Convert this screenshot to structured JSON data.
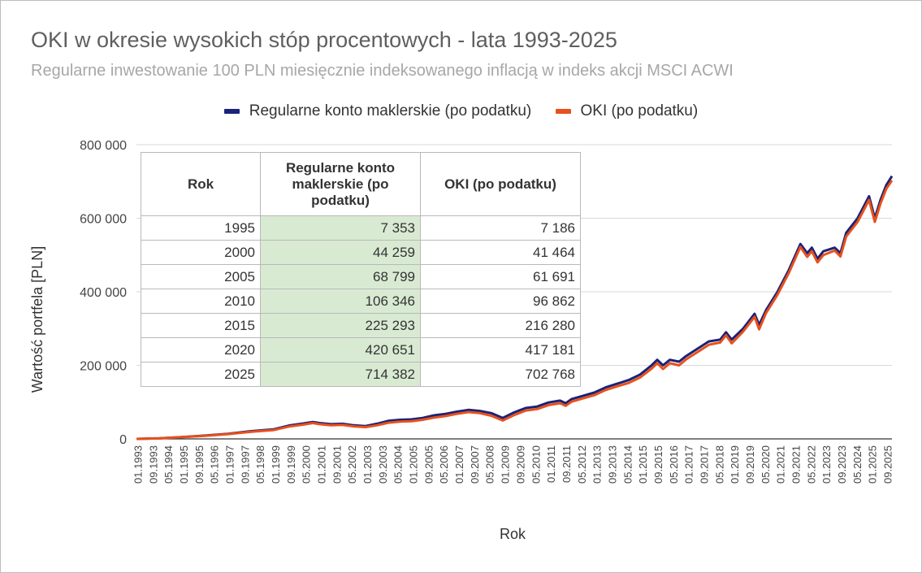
{
  "title": "OKI w okresie wysokich stóp procentowych - lata 1993-2025",
  "subtitle": "Regularne inwestowanie 100 PLN miesięcznie indeksowanego inflacją w indeks akcji MSCI ACWI",
  "colors": {
    "series1": "#1a2377",
    "series2": "#e8501c",
    "grid": "#d9d9d9",
    "table_highlight": "#d9ead3"
  },
  "chart_data": {
    "type": "line",
    "xlabel": "Rok",
    "ylabel": "Wartość portfela [PLN]",
    "ylim": [
      0,
      800000
    ],
    "y_ticks": [
      "0",
      "200 000",
      "400 000",
      "600 000",
      "800 000"
    ],
    "x_tick_labels": [
      "01.1993",
      "09.1993",
      "05.1994",
      "01.1995",
      "09.1995",
      "05.1996",
      "01.1997",
      "09.1997",
      "05.1998",
      "01.1999",
      "09.1999",
      "05.2000",
      "01.2001",
      "09.2001",
      "05.2002",
      "01.2003",
      "09.2003",
      "05.2004",
      "01.2005",
      "09.2005",
      "05.2006",
      "01.2007",
      "09.2007",
      "05.2008",
      "01.2009",
      "09.2009",
      "05.2010",
      "01.2011",
      "09.2011",
      "05.2012",
      "01.2013",
      "09.2013",
      "05.2014",
      "01.2015",
      "09.2015",
      "05.2016",
      "01.2017",
      "09.2017",
      "05.2018",
      "01.2019",
      "09.2019",
      "05.2020",
      "01.2021",
      "09.2021",
      "05.2022",
      "01.2023",
      "09.2023",
      "05.2024",
      "01.2025",
      "09.2025"
    ],
    "legend_position": "top",
    "grid": true,
    "series": [
      {
        "name": "Regularne konto maklerskie (po podatku)",
        "color": "#1a2377",
        "points": [
          [
            1993.0,
            0
          ],
          [
            1994.0,
            1500
          ],
          [
            1995.0,
            5000
          ],
          [
            1996.0,
            9000
          ],
          [
            1997.0,
            14000
          ],
          [
            1998.0,
            21000
          ],
          [
            1999.0,
            26000
          ],
          [
            1999.7,
            37000
          ],
          [
            2000.3,
            42000
          ],
          [
            2000.7,
            46000
          ],
          [
            2001.0,
            43000
          ],
          [
            2001.5,
            40000
          ],
          [
            2002.0,
            41000
          ],
          [
            2002.5,
            37000
          ],
          [
            2003.0,
            35000
          ],
          [
            2003.5,
            41000
          ],
          [
            2004.0,
            49000
          ],
          [
            2004.5,
            52000
          ],
          [
            2005.0,
            53000
          ],
          [
            2005.5,
            57000
          ],
          [
            2006.0,
            64000
          ],
          [
            2006.5,
            68000
          ],
          [
            2007.0,
            74000
          ],
          [
            2007.5,
            79000
          ],
          [
            2008.0,
            76000
          ],
          [
            2008.5,
            70000
          ],
          [
            2009.0,
            57000
          ],
          [
            2009.2,
            63000
          ],
          [
            2009.5,
            72000
          ],
          [
            2010.0,
            84000
          ],
          [
            2010.5,
            88000
          ],
          [
            2011.0,
            99000
          ],
          [
            2011.5,
            104000
          ],
          [
            2011.75,
            97000
          ],
          [
            2012.0,
            108000
          ],
          [
            2012.5,
            117000
          ],
          [
            2013.0,
            126000
          ],
          [
            2013.5,
            140000
          ],
          [
            2014.0,
            150000
          ],
          [
            2014.5,
            160000
          ],
          [
            2015.0,
            175000
          ],
          [
            2015.5,
            200000
          ],
          [
            2015.75,
            215000
          ],
          [
            2016.0,
            200000
          ],
          [
            2016.3,
            215000
          ],
          [
            2016.7,
            210000
          ],
          [
            2017.0,
            225000
          ],
          [
            2017.5,
            245000
          ],
          [
            2018.0,
            265000
          ],
          [
            2018.5,
            270000
          ],
          [
            2018.75,
            290000
          ],
          [
            2019.0,
            270000
          ],
          [
            2019.5,
            300000
          ],
          [
            2020.0,
            340000
          ],
          [
            2020.2,
            310000
          ],
          [
            2020.5,
            350000
          ],
          [
            2021.0,
            400000
          ],
          [
            2021.5,
            460000
          ],
          [
            2022.0,
            530000
          ],
          [
            2022.3,
            505000
          ],
          [
            2022.5,
            520000
          ],
          [
            2022.75,
            490000
          ],
          [
            2023.0,
            510000
          ],
          [
            2023.5,
            520000
          ],
          [
            2023.75,
            505000
          ],
          [
            2024.0,
            560000
          ],
          [
            2024.5,
            600000
          ],
          [
            2024.75,
            630000
          ],
          [
            2025.0,
            660000
          ],
          [
            2025.25,
            600000
          ],
          [
            2025.5,
            650000
          ],
          [
            2025.75,
            690000
          ],
          [
            2026.0,
            714382
          ]
        ]
      },
      {
        "name": "OKI (po podatku)",
        "color": "#e8501c",
        "points": [
          [
            1993.0,
            0
          ],
          [
            1994.0,
            1400
          ],
          [
            1995.0,
            4800
          ],
          [
            1996.0,
            8500
          ],
          [
            1997.0,
            13000
          ],
          [
            1998.0,
            19500
          ],
          [
            1999.0,
            24000
          ],
          [
            1999.7,
            34000
          ],
          [
            2000.3,
            39000
          ],
          [
            2000.7,
            43000
          ],
          [
            2001.0,
            40000
          ],
          [
            2001.5,
            37000
          ],
          [
            2002.0,
            38000
          ],
          [
            2002.5,
            34000
          ],
          [
            2003.0,
            32000
          ],
          [
            2003.5,
            37000
          ],
          [
            2004.0,
            44000
          ],
          [
            2004.5,
            47000
          ],
          [
            2005.0,
            48000
          ],
          [
            2005.5,
            52000
          ],
          [
            2006.0,
            58000
          ],
          [
            2006.5,
            62000
          ],
          [
            2007.0,
            68000
          ],
          [
            2007.5,
            73000
          ],
          [
            2008.0,
            70000
          ],
          [
            2008.5,
            63000
          ],
          [
            2009.0,
            50000
          ],
          [
            2009.2,
            56000
          ],
          [
            2009.5,
            65000
          ],
          [
            2010.0,
            77000
          ],
          [
            2010.5,
            81000
          ],
          [
            2011.0,
            92000
          ],
          [
            2011.5,
            97000
          ],
          [
            2011.75,
            90000
          ],
          [
            2012.0,
            101000
          ],
          [
            2012.5,
            110000
          ],
          [
            2013.0,
            119000
          ],
          [
            2013.5,
            133000
          ],
          [
            2014.0,
            143000
          ],
          [
            2014.5,
            152000
          ],
          [
            2015.0,
            167000
          ],
          [
            2015.5,
            191000
          ],
          [
            2015.75,
            206000
          ],
          [
            2016.0,
            190000
          ],
          [
            2016.3,
            206000
          ],
          [
            2016.7,
            200000
          ],
          [
            2017.0,
            216000
          ],
          [
            2017.5,
            236000
          ],
          [
            2018.0,
            256000
          ],
          [
            2018.5,
            262000
          ],
          [
            2018.75,
            282000
          ],
          [
            2019.0,
            260000
          ],
          [
            2019.5,
            292000
          ],
          [
            2020.0,
            332000
          ],
          [
            2020.2,
            298000
          ],
          [
            2020.5,
            342000
          ],
          [
            2021.0,
            392000
          ],
          [
            2021.5,
            452000
          ],
          [
            2022.0,
            522000
          ],
          [
            2022.3,
            495000
          ],
          [
            2022.5,
            510000
          ],
          [
            2022.75,
            480000
          ],
          [
            2023.0,
            500000
          ],
          [
            2023.5,
            512000
          ],
          [
            2023.75,
            496000
          ],
          [
            2024.0,
            550000
          ],
          [
            2024.5,
            590000
          ],
          [
            2024.75,
            620000
          ],
          [
            2025.0,
            650000
          ],
          [
            2025.25,
            590000
          ],
          [
            2025.5,
            640000
          ],
          [
            2025.75,
            680000
          ],
          [
            2026.0,
            702768
          ]
        ]
      }
    ]
  },
  "table": {
    "headers": [
      "Rok",
      "Regularne konto maklerskie (po podatku)",
      "OKI (po podatku)"
    ],
    "rows": [
      [
        "1995",
        "7 353",
        "7 186"
      ],
      [
        "2000",
        "44 259",
        "41 464"
      ],
      [
        "2005",
        "68 799",
        "61 691"
      ],
      [
        "2010",
        "106 346",
        "96 862"
      ],
      [
        "2015",
        "225 293",
        "216 280"
      ],
      [
        "2020",
        "420 651",
        "417 181"
      ],
      [
        "2025",
        "714 382",
        "702 768"
      ]
    ]
  }
}
